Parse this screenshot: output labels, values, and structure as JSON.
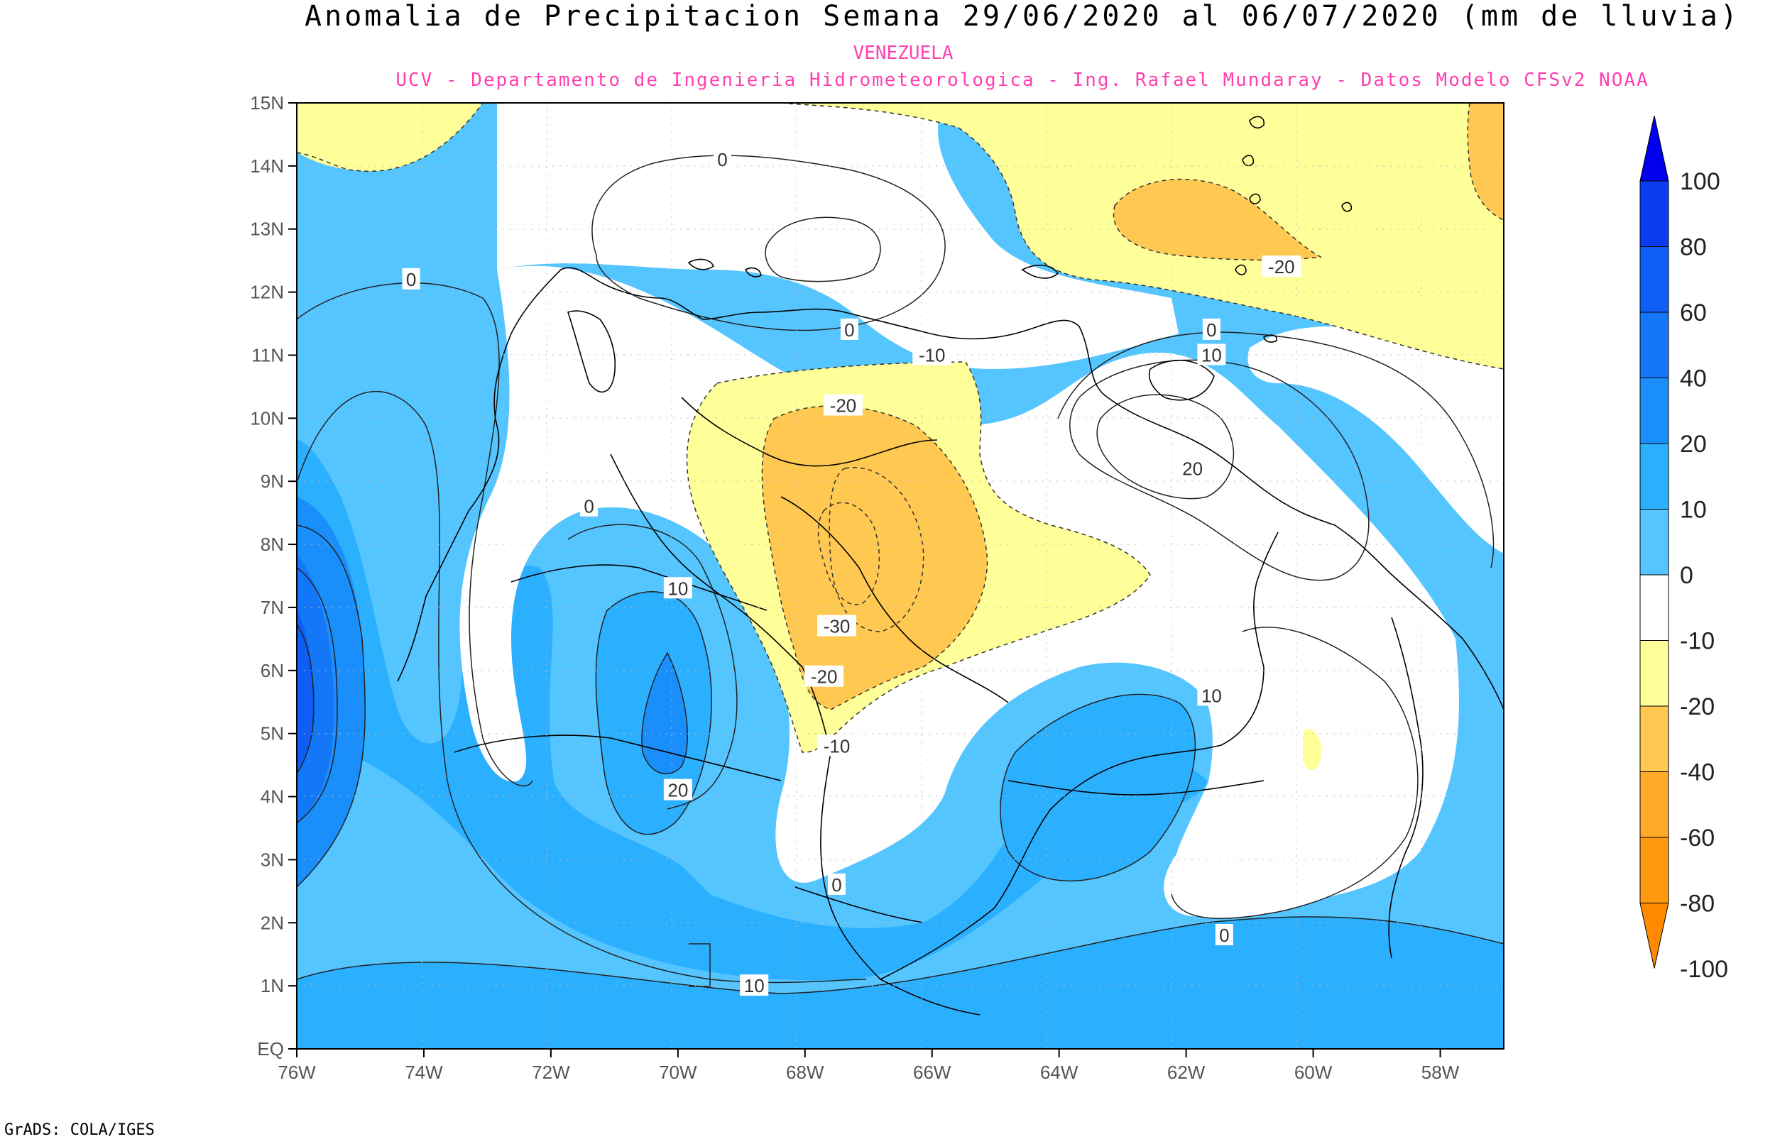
{
  "title": "Anomalia de Precipitacion Semana 29/06/2020 al 06/07/2020 (mm de lluvia)",
  "subtitle_region": "VENEZUELA",
  "subtitle_credit": "UCV - Departamento de Ingenieria Hidrometeorologica - Ing. Rafael Mundaray - Datos Modelo CFSv2 NOAA",
  "footer": "GrADS: COLA/IGES",
  "map": {
    "lat_labels": [
      "15N",
      "14N",
      "13N",
      "12N",
      "11N",
      "10N",
      "9N",
      "8N",
      "7N",
      "6N",
      "5N",
      "4N",
      "3N",
      "2N",
      "1N",
      "EQ"
    ],
    "lon_labels": [
      "76W",
      "74W",
      "72W",
      "70W",
      "68W",
      "66W",
      "64W",
      "62W",
      "60W",
      "58W"
    ],
    "contour_labels": [
      {
        "text": "0",
        "lon": -69.3,
        "lat": 14.1
      },
      {
        "text": "0",
        "lon": -74.2,
        "lat": 12.2
      },
      {
        "text": "0",
        "lon": -67.3,
        "lat": 11.4
      },
      {
        "text": "0",
        "lon": -61.6,
        "lat": 11.4
      },
      {
        "text": "10",
        "lon": -61.6,
        "lat": 11.0
      },
      {
        "text": "-10",
        "lon": -66.0,
        "lat": 11.0
      },
      {
        "text": "-20",
        "lon": -67.4,
        "lat": 10.2
      },
      {
        "text": "-20",
        "lon": -60.5,
        "lat": 12.4
      },
      {
        "text": "20",
        "lon": -61.9,
        "lat": 9.2
      },
      {
        "text": "0",
        "lon": -71.4,
        "lat": 8.6
      },
      {
        "text": "10",
        "lon": -70.0,
        "lat": 7.3
      },
      {
        "text": "-30",
        "lon": -67.5,
        "lat": 6.7
      },
      {
        "text": "-20",
        "lon": -67.7,
        "lat": 5.9
      },
      {
        "text": "10",
        "lon": -61.6,
        "lat": 5.6
      },
      {
        "text": "-10",
        "lon": -67.5,
        "lat": 4.8
      },
      {
        "text": "20",
        "lon": -70.0,
        "lat": 4.1
      },
      {
        "text": "0",
        "lon": -67.5,
        "lat": 2.6
      },
      {
        "text": "0",
        "lon": -61.4,
        "lat": 1.8
      },
      {
        "text": "10",
        "lon": -68.8,
        "lat": 1.0
      }
    ]
  },
  "colorbar": {
    "labels": [
      "100",
      "80",
      "60",
      "40",
      "20",
      "10",
      "0",
      "-10",
      "-20",
      "-40",
      "-60",
      "-80",
      "-100"
    ],
    "colors": [
      "#0000ee",
      "#0a3cf0",
      "#0f5ef5",
      "#1477f8",
      "#1a8ffb",
      "#2bb0ff",
      "#55c5ff",
      "#ffffff",
      "#ffff99",
      "#ffc850",
      "#ffaa28",
      "#ff9a10",
      "#ff8a00"
    ]
  }
}
